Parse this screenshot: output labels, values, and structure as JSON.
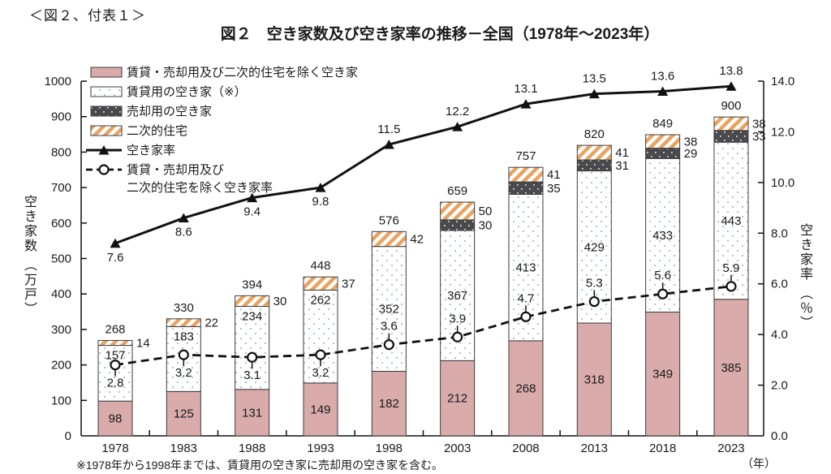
{
  "page": {
    "corner_label": "＜図２、付表１＞",
    "title": "図２　空き家数及び空き家率の推移－全国（1978年～2023年）",
    "footnote": "※1978年から1998年までは、賃貸用の空き家に売却用の空き家を含む。",
    "x_axis_unit_label": "（年）"
  },
  "chart_data": {
    "type": "bar",
    "subtype": "stacked-bar with two overlay line series on dual axes",
    "categories": [
      "1978",
      "1983",
      "1988",
      "1993",
      "1998",
      "2003",
      "2008",
      "2013",
      "2018",
      "2023"
    ],
    "left_axis": {
      "title": "空き家数",
      "unit": "（万戸）",
      "min": 0,
      "max": 1000,
      "ticks": [
        0,
        100,
        200,
        300,
        400,
        500,
        600,
        700,
        800,
        900,
        1000
      ]
    },
    "right_axis": {
      "title": "空き家率",
      "unit": "（％）",
      "min": 0,
      "max": 14,
      "tick_labels": [
        "0.0",
        "2.0",
        "4.0",
        "6.0",
        "8.0",
        "10.0",
        "12.0",
        "14.0"
      ]
    },
    "bar_series": [
      {
        "name": "賃貸・売却用及び二次的住宅を除く空き家",
        "swatch": "pink",
        "values": [
          98,
          125,
          131,
          149,
          182,
          212,
          268,
          318,
          349,
          385
        ]
      },
      {
        "name": "賃貸用の空き家（※）",
        "swatch": "dotted-white",
        "values": [
          157,
          183,
          234,
          262,
          352,
          367,
          413,
          429,
          433,
          443
        ]
      },
      {
        "name": "売却用の空き家",
        "swatch": "dark-dotted",
        "values": [
          null,
          null,
          null,
          null,
          null,
          30,
          35,
          31,
          29,
          33
        ]
      },
      {
        "name": "二次的住宅",
        "swatch": "orange-hatch",
        "values": [
          14,
          22,
          30,
          37,
          42,
          50,
          41,
          41,
          38,
          38
        ]
      }
    ],
    "bar_totals": [
      268,
      330,
      394,
      448,
      576,
      659,
      757,
      820,
      849,
      900
    ],
    "line_series": [
      {
        "name": "空き家率",
        "style": "solid-triangle",
        "values": [
          7.6,
          8.6,
          9.4,
          9.8,
          11.5,
          12.2,
          13.1,
          13.5,
          13.6,
          13.8
        ]
      },
      {
        "name": "賃貸・売却用及び二次的住宅を除く空き家率",
        "name_lines": [
          "賃貸・売却用及び",
          "二次的住宅を除く空き家率"
        ],
        "style": "dashed-circle",
        "values": [
          2.8,
          3.2,
          3.1,
          3.2,
          3.6,
          3.9,
          4.7,
          5.3,
          5.6,
          5.9
        ]
      }
    ],
    "legend_position": "top-left inside plot",
    "grid": false,
    "colors": {
      "bar_pink": "#d9abab",
      "hatch_orange": "#e9a35f",
      "dark_fill": "#4a4a4c",
      "dot_blue": "#aec3d6",
      "line_black": "#111111",
      "text": "#1a1a1a",
      "border": "#3d3d3d"
    }
  }
}
